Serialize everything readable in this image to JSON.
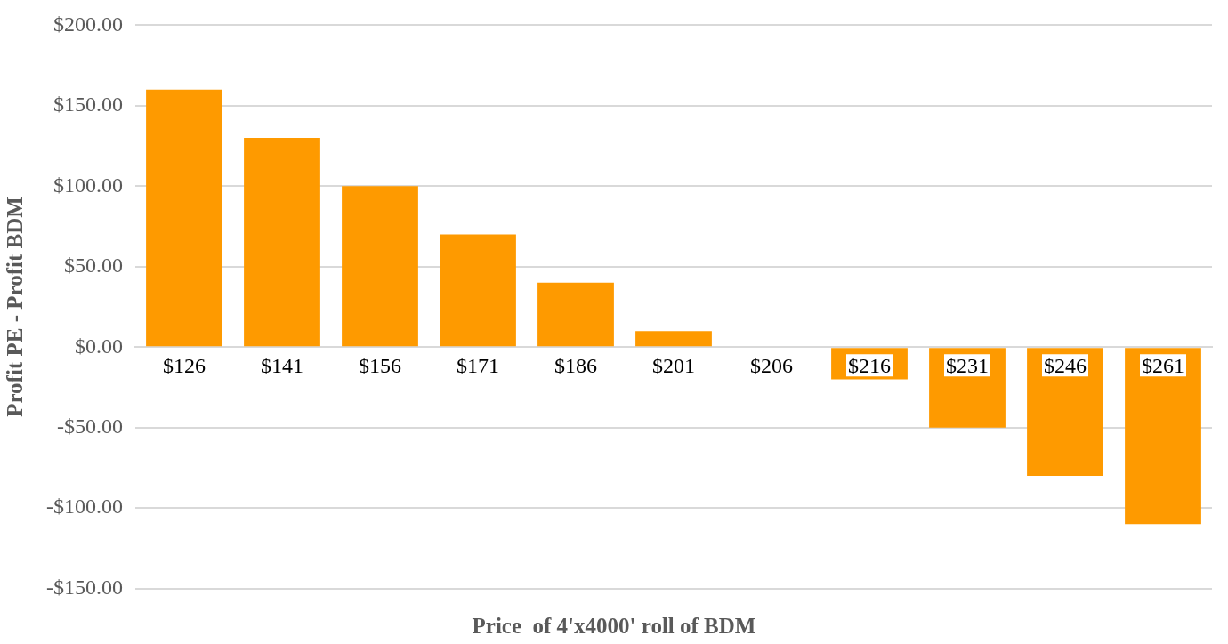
{
  "chart_data": {
    "type": "bar",
    "xlabel": "Price  of 4'x4000' roll of BDM",
    "ylabel": "Profit PE - Profit BDM",
    "categories": [
      "$126",
      "$141",
      "$156",
      "$171",
      "$186",
      "$201",
      "$206",
      "$216",
      "$231",
      "$246",
      "$261"
    ],
    "values": [
      160,
      130,
      100,
      70,
      40,
      10,
      0,
      -20,
      -50,
      -80,
      -110
    ],
    "color": "#fe9a00",
    "ylim": [
      -150,
      200
    ],
    "yticks": [
      {
        "value": -150,
        "label": "-$150.00"
      },
      {
        "value": -100,
        "label": "-$100.00"
      },
      {
        "value": -50,
        "label": "-$50.00"
      },
      {
        "value": 0,
        "label": "$0.00"
      },
      {
        "value": 50,
        "label": "$50.00"
      },
      {
        "value": 100,
        "label": "$100.00"
      },
      {
        "value": 150,
        "label": "$150.00"
      },
      {
        "value": 200,
        "label": "$200.00"
      }
    ],
    "grid": "y",
    "legend": false
  }
}
